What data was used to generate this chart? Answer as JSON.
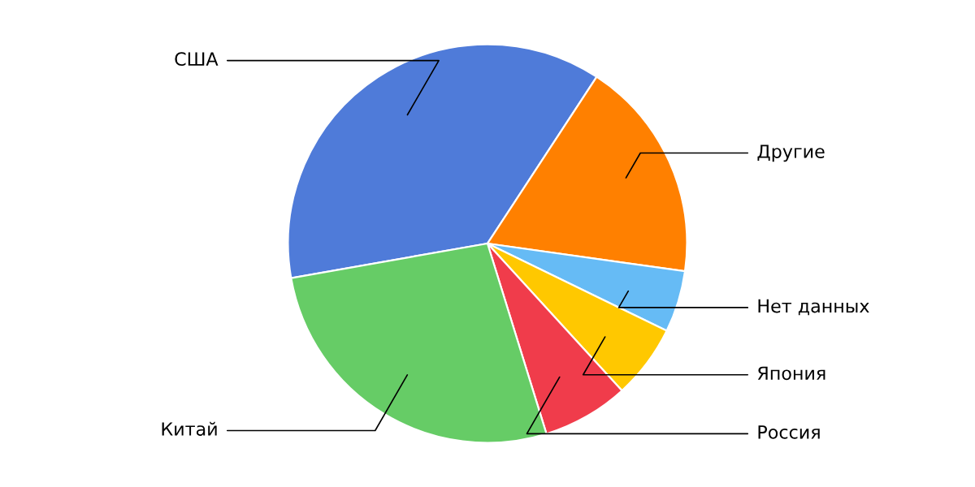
{
  "chart_data": {
    "type": "pie",
    "categories": [
      "США",
      "Другие",
      "Нет данных",
      "Япония",
      "Россия",
      "Китай"
    ],
    "values": [
      37,
      18,
      5,
      6,
      7,
      27
    ],
    "colors": [
      "#4f7bd9",
      "#ff8000",
      "#66bbf5",
      "#ffc800",
      "#f03c4b",
      "#66cc66"
    ]
  }
}
